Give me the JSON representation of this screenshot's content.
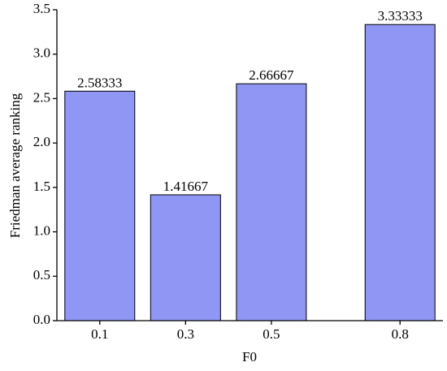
{
  "chart_data": {
    "type": "bar",
    "x": [
      0.1,
      0.3,
      0.5,
      0.8
    ],
    "values": [
      2.58333,
      1.41667,
      2.66667,
      3.33333
    ],
    "color": "#8f96f4",
    "xlabel": "F0",
    "ylabel": "Friedman average ranking",
    "xlim": [
      0,
      0.9
    ],
    "xticks": [
      0.1,
      0.3,
      0.5,
      0.8
    ],
    "ylim": [
      0,
      3.5
    ],
    "yticks": [
      {
        "value": 0,
        "label": "0.0"
      },
      0.5,
      {
        "value": 1,
        "label": "1.0"
      },
      1.5,
      {
        "value": 2,
        "label": "2.0"
      },
      2.5,
      {
        "value": 3,
        "label": "3.0"
      },
      3.5
    ]
  }
}
